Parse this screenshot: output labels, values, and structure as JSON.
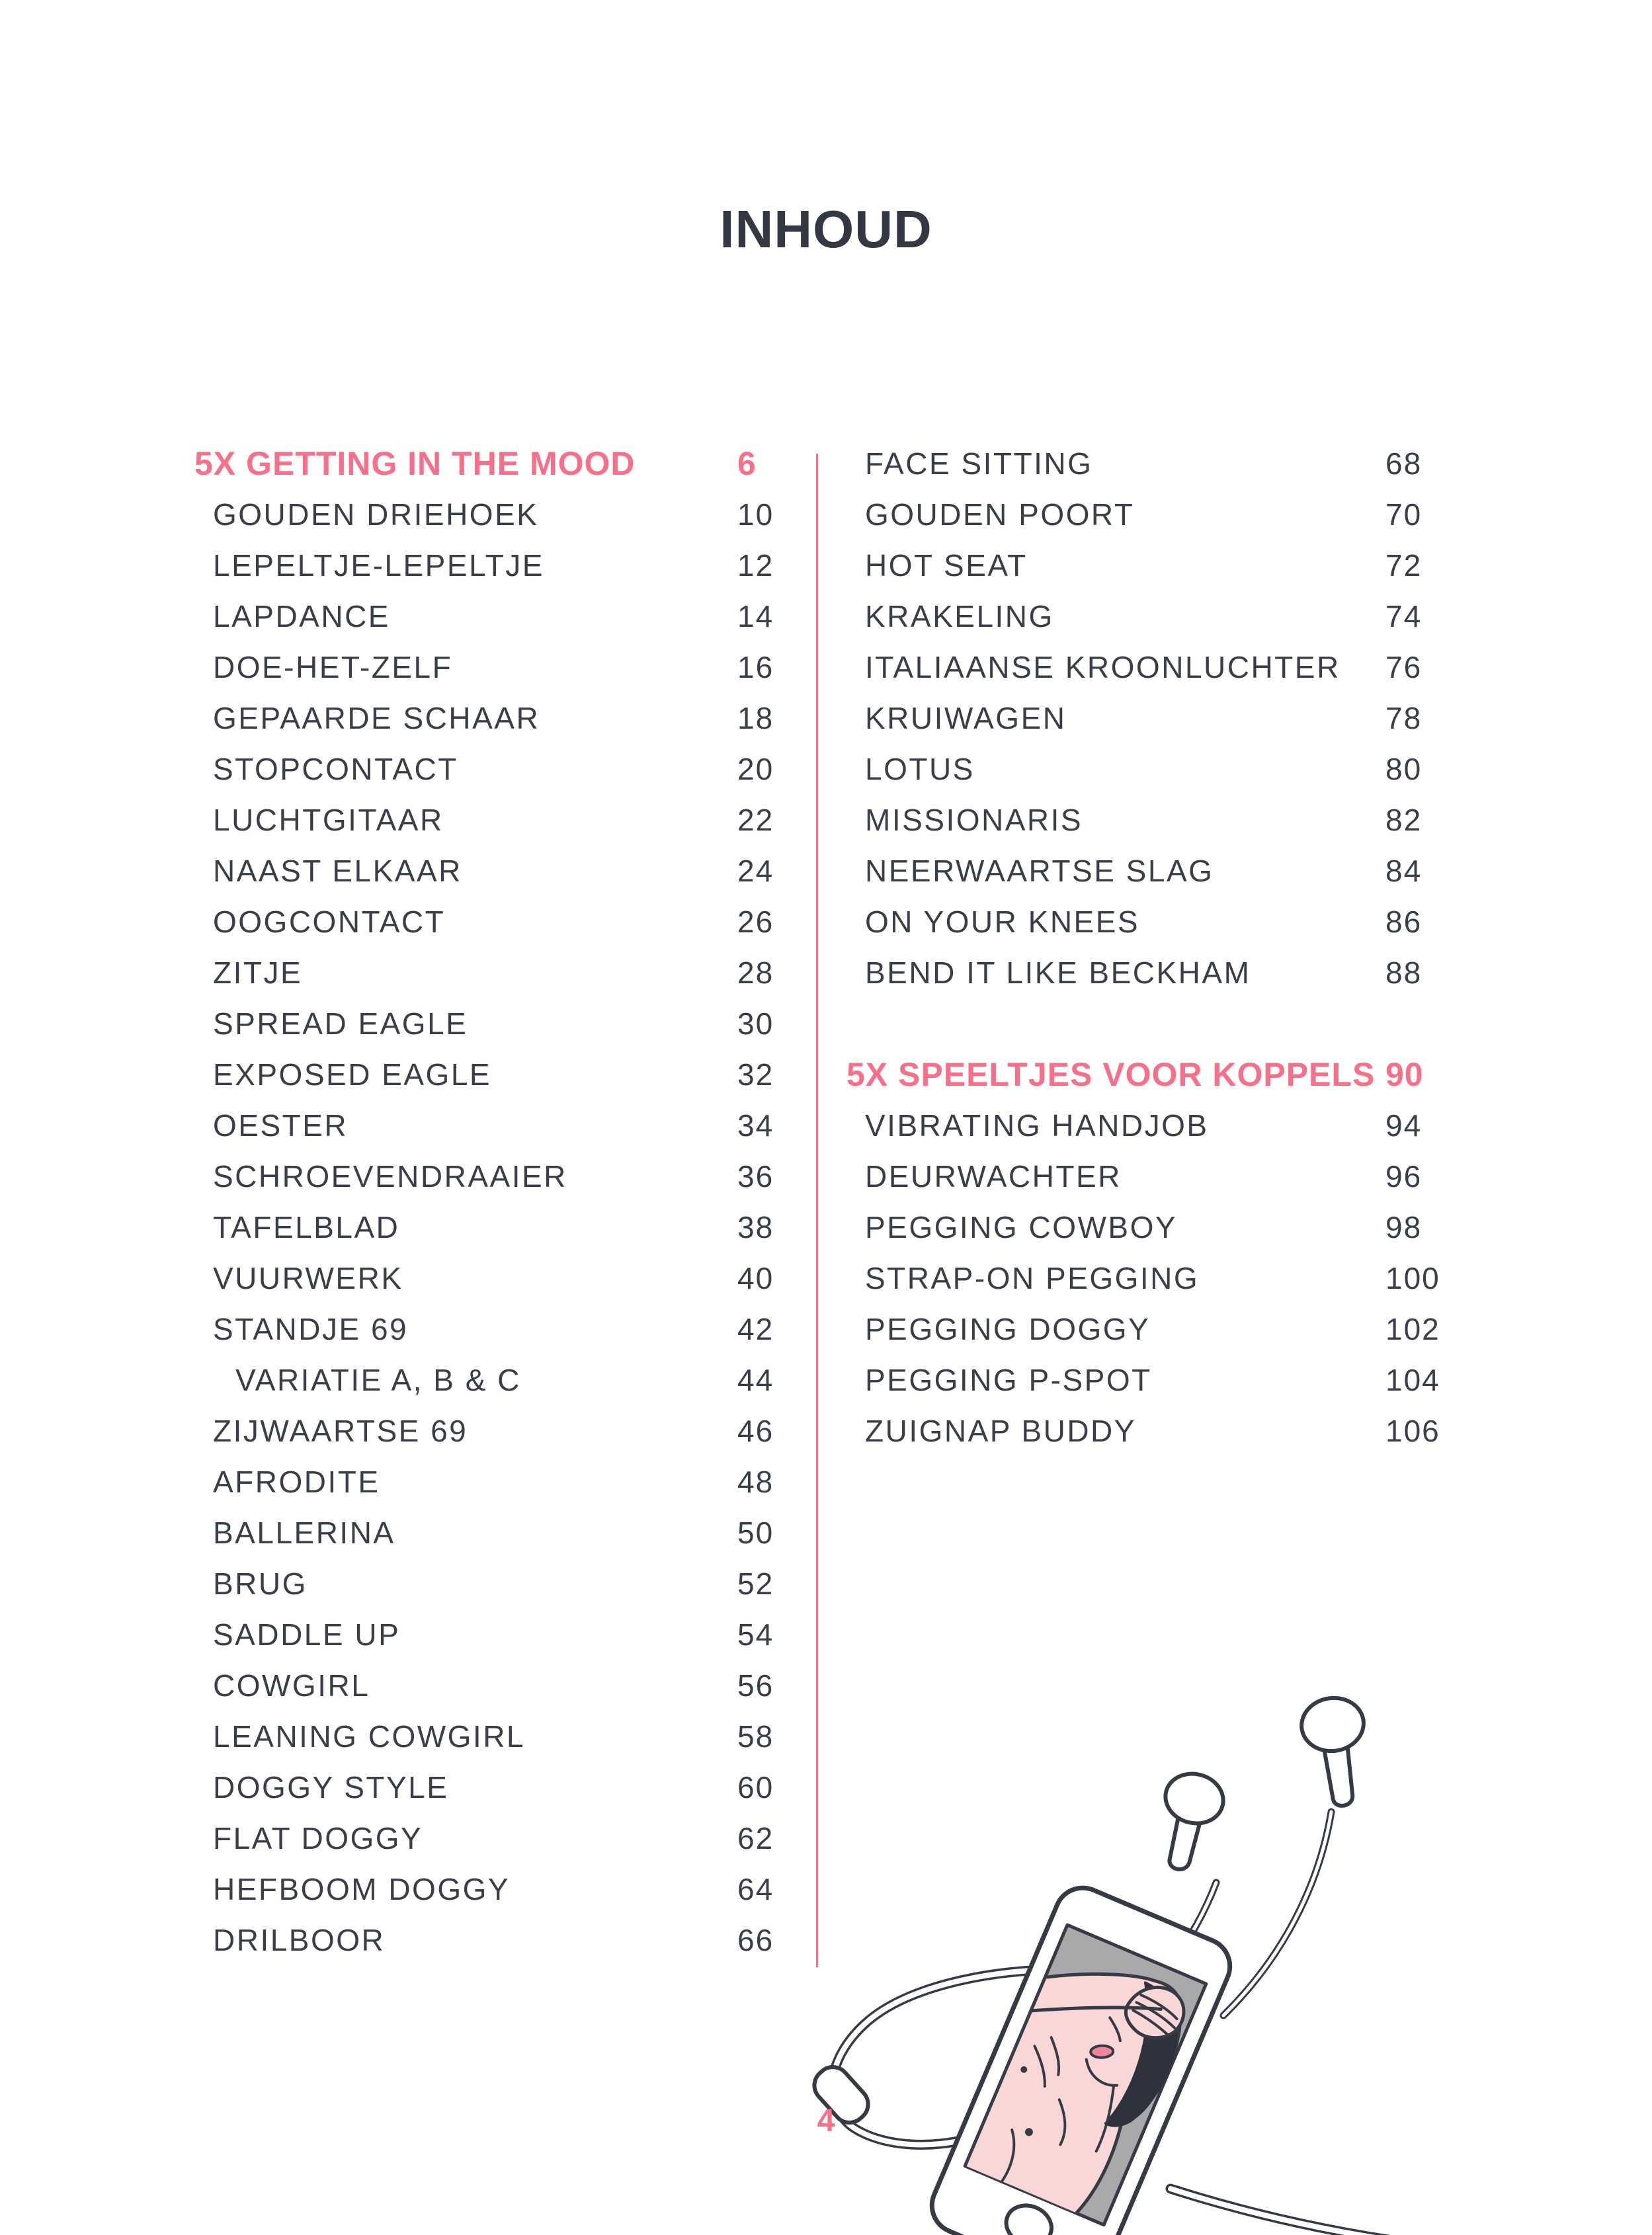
{
  "page": {
    "title": "INHOUD",
    "page_number": "4",
    "accent_color": "#f7708a",
    "text_color": "#3a3e49",
    "icons": {
      "illustration": "phone-with-earbuds-illustration"
    }
  },
  "toc": {
    "left_column": {
      "rows": [
        {
          "type": "heading",
          "label": "5X GETTING IN THE MOOD",
          "page": "6"
        },
        {
          "type": "entry",
          "label": "GOUDEN DRIEHOEK",
          "page": "10"
        },
        {
          "type": "entry",
          "label": "LEPELTJE-LEPELTJE",
          "page": "12"
        },
        {
          "type": "entry",
          "label": "LAPDANCE",
          "page": "14"
        },
        {
          "type": "entry",
          "label": "DOE-HET-ZELF",
          "page": "16"
        },
        {
          "type": "entry",
          "label": "GEPAARDE SCHAAR",
          "page": "18"
        },
        {
          "type": "entry",
          "label": "STOPCONTACT",
          "page": "20"
        },
        {
          "type": "entry",
          "label": "LUCHTGITAAR",
          "page": "22"
        },
        {
          "type": "entry",
          "label": "NAAST ELKAAR",
          "page": "24"
        },
        {
          "type": "entry",
          "label": "OOGCONTACT",
          "page": "26"
        },
        {
          "type": "entry",
          "label": "ZITJE",
          "page": "28"
        },
        {
          "type": "entry",
          "label": "SPREAD EAGLE",
          "page": "30"
        },
        {
          "type": "entry",
          "label": "EXPOSED EAGLE",
          "page": "32"
        },
        {
          "type": "entry",
          "label": "OESTER",
          "page": "34"
        },
        {
          "type": "entry",
          "label": "SCHROEVENDRAAIER",
          "page": "36"
        },
        {
          "type": "entry",
          "label": "TAFELBLAD",
          "page": "38"
        },
        {
          "type": "entry",
          "label": "VUURWERK",
          "page": "40"
        },
        {
          "type": "entry",
          "label": "STANDJE 69",
          "page": "42"
        },
        {
          "type": "entry-sub",
          "label": "VARIATIE A, B & C",
          "page": "44"
        },
        {
          "type": "entry",
          "label": "ZIJWAARTSE 69",
          "page": "46"
        },
        {
          "type": "entry",
          "label": "AFRODITE",
          "page": "48"
        },
        {
          "type": "entry",
          "label": "BALLERINA",
          "page": "50"
        },
        {
          "type": "entry",
          "label": "BRUG",
          "page": "52"
        },
        {
          "type": "entry",
          "label": "SADDLE UP",
          "page": "54"
        },
        {
          "type": "entry",
          "label": "COWGIRL",
          "page": "56"
        },
        {
          "type": "entry",
          "label": "LEANING COWGIRL",
          "page": "58"
        },
        {
          "type": "entry",
          "label": "DOGGY STYLE",
          "page": "60"
        },
        {
          "type": "entry",
          "label": "FLAT DOGGY",
          "page": "62"
        },
        {
          "type": "entry",
          "label": "HEFBOOM DOGGY",
          "page": "64"
        },
        {
          "type": "entry",
          "label": "DRILBOOR",
          "page": "66"
        }
      ]
    },
    "right_column": {
      "rows": [
        {
          "type": "entry",
          "label": "FACE SITTING",
          "page": "68"
        },
        {
          "type": "entry",
          "label": "GOUDEN POORT",
          "page": "70"
        },
        {
          "type": "entry",
          "label": "HOT SEAT",
          "page": "72"
        },
        {
          "type": "entry",
          "label": "KRAKELING",
          "page": "74"
        },
        {
          "type": "entry",
          "label": "ITALIAANSE KROONLUCHTER",
          "page": "76"
        },
        {
          "type": "entry",
          "label": "KRUIWAGEN",
          "page": "78"
        },
        {
          "type": "entry",
          "label": "LOTUS",
          "page": "80"
        },
        {
          "type": "entry",
          "label": "MISSIONARIS",
          "page": "82"
        },
        {
          "type": "entry",
          "label": "NEERWAARTSE SLAG",
          "page": "84"
        },
        {
          "type": "entry",
          "label": "ON YOUR KNEES",
          "page": "86"
        },
        {
          "type": "entry",
          "label": "BEND IT LIKE BECKHAM",
          "page": "88"
        },
        {
          "type": "spacer"
        },
        {
          "type": "heading",
          "label": "5X SPEELTJES VOOR KOPPELS",
          "page": "90"
        },
        {
          "type": "entry",
          "label": "VIBRATING HANDJOB",
          "page": "94"
        },
        {
          "type": "entry",
          "label": "DEURWACHTER",
          "page": "96"
        },
        {
          "type": "entry",
          "label": "PEGGING COWBOY",
          "page": "98"
        },
        {
          "type": "entry",
          "label": "STRAP-ON PEGGING",
          "page": "100"
        },
        {
          "type": "entry",
          "label": "PEGGING DOGGY",
          "page": "102"
        },
        {
          "type": "entry",
          "label": "PEGGING P-SPOT",
          "page": "104"
        },
        {
          "type": "entry",
          "label": "ZUIGNAP BUDDY",
          "page": "106"
        }
      ]
    }
  }
}
